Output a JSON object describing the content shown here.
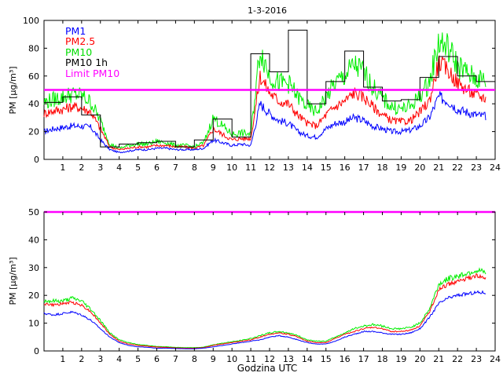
{
  "title": "1-3-2016",
  "xlabel": "Godzina UTC",
  "colors": {
    "pm1": "#0000ff",
    "pm25": "#ff0000",
    "pm10": "#00ee00",
    "pm10_1h": "#000000",
    "limit": "#ff00ff"
  },
  "chart_data": [
    {
      "type": "line",
      "ylabel": "PM [µg/m³]",
      "xlim": [
        0,
        24
      ],
      "ylim": [
        0,
        100
      ],
      "xticks": [
        1,
        2,
        3,
        4,
        5,
        6,
        7,
        8,
        9,
        10,
        11,
        12,
        13,
        14,
        15,
        16,
        17,
        18,
        19,
        20,
        21,
        22,
        23,
        24
      ],
      "yticks": [
        0,
        20,
        40,
        60,
        80,
        100
      ],
      "grid": false,
      "legend": {
        "position": "top-left",
        "entries": [
          "PM1",
          "PM2.5",
          "PM10",
          "PM10 1h",
          "Limit PM10"
        ]
      },
      "limit_value": 50,
      "x": [
        0,
        0.5,
        1,
        1.5,
        2,
        2.5,
        3,
        3.5,
        4,
        4.5,
        5,
        5.5,
        6,
        6.5,
        7,
        7.5,
        8,
        8.5,
        9,
        9.5,
        10,
        10.5,
        11,
        11.5,
        12,
        12.5,
        13,
        13.5,
        14,
        14.5,
        15,
        15.5,
        16,
        16.5,
        17,
        17.5,
        18,
        18.5,
        19,
        19.5,
        20,
        20.5,
        21,
        21.5,
        22,
        22.5,
        23,
        23.5
      ],
      "series": [
        {
          "name": "PM1",
          "values": [
            20,
            22,
            23,
            24,
            24,
            23,
            14,
            7,
            5,
            6,
            7,
            7,
            8,
            8,
            7,
            7,
            7,
            8,
            14,
            12,
            10,
            11,
            10,
            40,
            33,
            28,
            26,
            20,
            17,
            16,
            22,
            26,
            27,
            30,
            28,
            24,
            22,
            20,
            20,
            21,
            24,
            30,
            45,
            42,
            36,
            34,
            32,
            31
          ]
        },
        {
          "name": "PM2.5",
          "values": [
            33,
            35,
            36,
            38,
            37,
            34,
            22,
            9,
            7,
            8,
            9,
            9,
            10,
            10,
            9,
            9,
            8,
            10,
            22,
            18,
            14,
            15,
            15,
            60,
            48,
            42,
            40,
            32,
            26,
            24,
            32,
            38,
            42,
            48,
            45,
            38,
            32,
            28,
            27,
            28,
            34,
            42,
            70,
            64,
            55,
            50,
            46,
            44
          ]
        },
        {
          "name": "PM10",
          "values": [
            41,
            43,
            45,
            47,
            46,
            41,
            28,
            11,
            8,
            10,
            11,
            11,
            13,
            12,
            10,
            10,
            9,
            12,
            30,
            24,
            18,
            19,
            18,
            80,
            60,
            55,
            55,
            45,
            38,
            34,
            45,
            55,
            60,
            68,
            63,
            52,
            44,
            38,
            36,
            38,
            46,
            55,
            85,
            80,
            68,
            62,
            58,
            57
          ]
        }
      ],
      "hourly_pm10": {
        "name": "PM10 1h",
        "hours": [
          0,
          1,
          2,
          3,
          4,
          5,
          6,
          7,
          8,
          9,
          10,
          11,
          12,
          13,
          14,
          15,
          16,
          17,
          18,
          19,
          20,
          21,
          22,
          23
        ],
        "values": [
          41,
          45,
          32,
          9,
          11,
          12,
          13,
          9,
          14,
          29,
          16,
          76,
          63,
          93,
          40,
          56,
          78,
          52,
          42,
          43,
          59,
          74,
          60,
          56
        ]
      }
    },
    {
      "type": "line",
      "ylabel": "PM [µg/m³]",
      "xlim": [
        0,
        24
      ],
      "ylim": [
        0,
        50
      ],
      "xticks": [
        1,
        2,
        3,
        4,
        5,
        6,
        7,
        8,
        9,
        10,
        11,
        12,
        13,
        14,
        15,
        16,
        17,
        18,
        19,
        20,
        21,
        22,
        23,
        24
      ],
      "yticks": [
        0,
        10,
        20,
        30,
        40,
        50
      ],
      "grid": false,
      "limit_value": 50,
      "x": [
        0,
        0.5,
        1,
        1.5,
        2,
        2.5,
        3,
        3.5,
        4,
        4.5,
        5,
        5.5,
        6,
        6.5,
        7,
        7.5,
        8,
        8.5,
        9,
        9.5,
        10,
        10.5,
        11,
        11.5,
        12,
        12.5,
        13,
        13.5,
        14,
        14.5,
        15,
        15.5,
        16,
        16.5,
        17,
        17.5,
        18,
        18.5,
        19,
        19.5,
        20,
        20.5,
        21,
        21.5,
        22,
        22.5,
        23,
        23.5
      ],
      "series": [
        {
          "name": "PM1",
          "values": [
            13.5,
            13,
            13.5,
            14,
            13,
            11,
            8,
            5,
            3,
            2,
            1.5,
            1.3,
            1,
            1,
            0.9,
            0.8,
            0.8,
            1,
            1.5,
            2,
            2.5,
            3,
            3.5,
            4,
            5,
            5.5,
            5,
            4,
            3,
            2.5,
            2.5,
            3.5,
            5,
            6,
            7,
            7,
            6.5,
            6,
            6,
            6.5,
            8,
            12,
            17,
            19,
            20,
            20.5,
            21,
            21
          ]
        },
        {
          "name": "PM2.5",
          "values": [
            17,
            16.5,
            17,
            17.5,
            16.5,
            14,
            10,
            6,
            3.5,
            2.5,
            2,
            1.7,
            1.4,
            1.3,
            1.1,
            1,
            1,
            1.2,
            2,
            2.5,
            3,
            3.5,
            4,
            5,
            6,
            6.5,
            6,
            5,
            3.5,
            3,
            3,
            4.5,
            6,
            7,
            8,
            8.5,
            8,
            7,
            7,
            7.5,
            9,
            14,
            22,
            24,
            25,
            26,
            27,
            26
          ]
        },
        {
          "name": "PM10",
          "values": [
            18,
            18,
            18,
            19,
            18,
            15,
            11,
            6.5,
            4,
            3,
            2.3,
            2,
            1.6,
            1.5,
            1.3,
            1.2,
            1.2,
            1.4,
            2.2,
            2.8,
            3.3,
            3.8,
            4.5,
            5.5,
            6.5,
            7,
            6.5,
            5.5,
            4,
            3.5,
            3.5,
            5,
            6.5,
            8,
            9,
            9.5,
            9,
            8,
            8,
            8.5,
            10,
            15,
            24,
            26,
            27,
            28,
            29,
            28
          ]
        }
      ]
    }
  ]
}
